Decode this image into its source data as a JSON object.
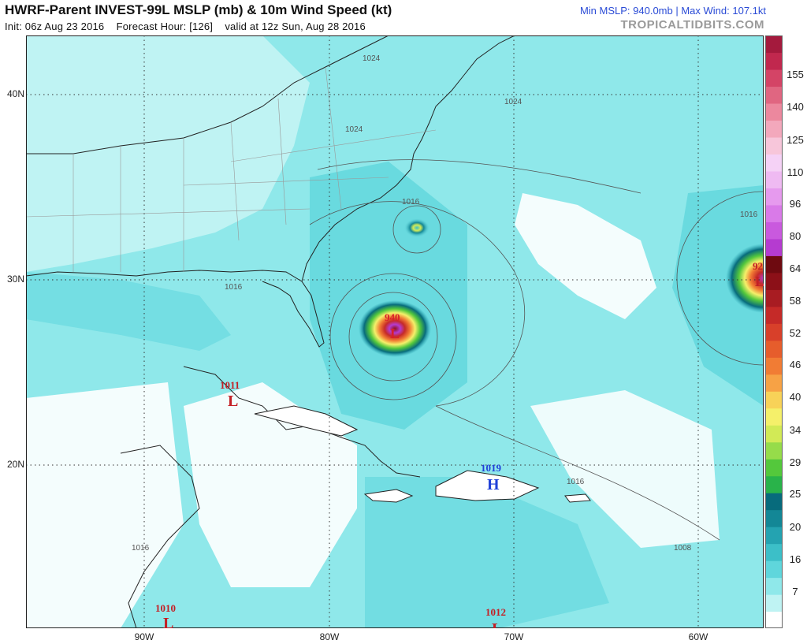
{
  "header": {
    "title": "HWRF-Parent INVEST-99L MSLP (mb) & 10m Wind Speed (kt)",
    "init": "Init: 06z Aug 23 2016",
    "forecast_hour": "Forecast Hour: [126]",
    "valid": "valid at 12z Sun, Aug 28 2016",
    "stats": "Min MSLP: 940.0mb | Max Wind: 107.1kt",
    "site": "TROPICALTIDBITS.COM"
  },
  "axes": {
    "lat_labels": [
      "40N",
      "30N",
      "20N"
    ],
    "lon_labels": [
      "90W",
      "80W",
      "70W",
      "60W"
    ]
  },
  "colorbar": {
    "levels": [
      "155",
      "140",
      "125",
      "110",
      "96",
      "80",
      "64",
      "58",
      "52",
      "46",
      "40",
      "34",
      "29",
      "25",
      "20",
      "16",
      "7"
    ],
    "colors": [
      "#ffffff",
      "#bff3f3",
      "#8fe8ea",
      "#5fd6dc",
      "#3cbfc8",
      "#24a3b1",
      "#138796",
      "#076b7c",
      "#29b34a",
      "#54c83c",
      "#96dc4a",
      "#d2ea56",
      "#f5f06a",
      "#f8d258",
      "#f7a245",
      "#f17c34",
      "#e65d2c",
      "#d8402a",
      "#c52a28",
      "#a81c22",
      "#8c1018",
      "#6e0a10",
      "#b53bd0",
      "#c959de",
      "#d97ae8",
      "#e69aee",
      "#efbaf2",
      "#f5d2f6",
      "#f7c6da",
      "#f3a8bc",
      "#ec889e",
      "#e06681",
      "#d44466",
      "#c1284e",
      "#a41a3d"
    ]
  },
  "labels": {
    "pressure": [
      {
        "type": "L",
        "value": "940",
        "color": "#d8202a"
      },
      {
        "type": "L",
        "value": "1011",
        "color": "#c32026"
      },
      {
        "type": "H",
        "value": "1019",
        "color": "#2040d8"
      },
      {
        "type": "L",
        "value": "1010",
        "color": "#c32026"
      },
      {
        "type": "L",
        "value": "1012",
        "color": "#c32026"
      },
      {
        "type": "L",
        "value": "92",
        "color": "#c32026"
      }
    ],
    "isobars": [
      "1024",
      "1024",
      "1024",
      "1016",
      "1016",
      "1016",
      "1016",
      "1016",
      "1008"
    ]
  }
}
